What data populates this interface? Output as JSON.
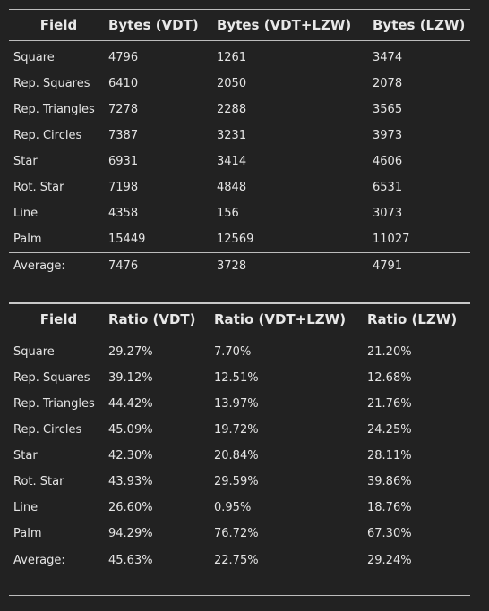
{
  "bytes_table": {
    "headers": [
      "Field",
      "Bytes (VDT)",
      "Bytes (VDT+LZW)",
      "Bytes (LZW)"
    ],
    "rows": [
      [
        "Square",
        "4796",
        "1261",
        "3474"
      ],
      [
        "Rep. Squares",
        "6410",
        "2050",
        "2078"
      ],
      [
        "Rep. Triangles",
        "7278",
        "2288",
        "3565"
      ],
      [
        "Rep. Circles",
        "7387",
        "3231",
        "3973"
      ],
      [
        "Star",
        "6931",
        "3414",
        "4606"
      ],
      [
        "Rot. Star",
        "7198",
        "4848",
        "6531"
      ],
      [
        "Line",
        "4358",
        "156",
        "3073"
      ],
      [
        "Palm",
        "15449",
        "12569",
        "11027"
      ]
    ],
    "average": [
      "Average:",
      "7476",
      "3728",
      "4791"
    ]
  },
  "ratio_table": {
    "headers": [
      "Field",
      "Ratio (VDT)",
      "Ratio (VDT+LZW)",
      "Ratio (LZW)"
    ],
    "rows": [
      [
        "Square",
        "29.27%",
        "7.70%",
        "21.20%"
      ],
      [
        "Rep. Squares",
        "39.12%",
        "12.51%",
        "12.68%"
      ],
      [
        "Rep. Triangles",
        "44.42%",
        "13.97%",
        "21.76%"
      ],
      [
        "Rep. Circles",
        "45.09%",
        "19.72%",
        "24.25%"
      ],
      [
        "Star",
        "42.30%",
        "20.84%",
        "28.11%"
      ],
      [
        "Rot. Star",
        "43.93%",
        "29.59%",
        "39.86%"
      ],
      [
        "Line",
        "26.60%",
        "0.95%",
        "18.76%"
      ],
      [
        "Palm",
        "94.29%",
        "76.72%",
        "67.30%"
      ]
    ],
    "average": [
      "Average:",
      "45.63%",
      "22.75%",
      "29.24%"
    ]
  }
}
